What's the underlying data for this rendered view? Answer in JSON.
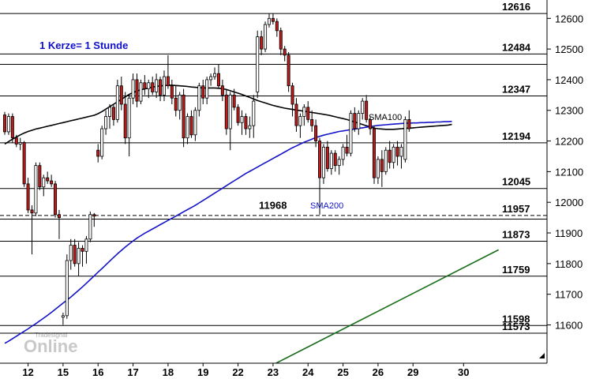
{
  "note": "1 Kerze= 1 Stunde",
  "watermark": {
    "brand": "Tradesignal",
    "text": "Online"
  },
  "chart_data": {
    "type": "candlestick",
    "ylim": [
      11475,
      12660
    ],
    "y_ticks": [
      11600,
      11700,
      11800,
      11900,
      12000,
      12100,
      12200,
      12300,
      12400,
      12500,
      12600
    ],
    "x_ticks": [
      {
        "label": "12",
        "slot": 6
      },
      {
        "label": "15",
        "slot": 15
      },
      {
        "label": "16",
        "slot": 24
      },
      {
        "label": "17",
        "slot": 33
      },
      {
        "label": "18",
        "slot": 42
      },
      {
        "label": "19",
        "slot": 51
      },
      {
        "label": "22",
        "slot": 60
      },
      {
        "label": "23",
        "slot": 69
      },
      {
        "label": "24",
        "slot": 78
      },
      {
        "label": "25",
        "slot": 87
      },
      {
        "label": "26",
        "slot": 96
      },
      {
        "label": "29",
        "slot": 105
      },
      {
        "label": "30",
        "slot": 118
      }
    ],
    "x_slots": 123,
    "levels": [
      {
        "value": 12616,
        "label": "12616",
        "style": "solid"
      },
      {
        "value": 12484,
        "label": "12484",
        "style": "solid"
      },
      {
        "value": 12347,
        "label": "12347",
        "style": "solid"
      },
      {
        "value": 12194,
        "label": "12194",
        "style": "solid"
      },
      {
        "value": 12045,
        "label": "12045",
        "style": "solid"
      },
      {
        "value": 11957,
        "label": "11957",
        "style": "dashed"
      },
      {
        "value": 11873,
        "label": "11873",
        "style": "solid"
      },
      {
        "value": 11759,
        "label": "11759",
        "style": "solid"
      },
      {
        "value": 11598,
        "label": "11598",
        "style": "solid"
      },
      {
        "value": 11573,
        "label": "11573",
        "style": "solid"
      }
    ],
    "extra_lines": [
      12450,
      11945
    ],
    "annotations": [
      {
        "text": "11968",
        "value": 11968
      }
    ],
    "trendline": {
      "color": "#1a6e1a",
      "points": [
        [
          69,
          11470
        ],
        [
          127,
          11845
        ]
      ]
    },
    "series": [
      {
        "name": "SMA100",
        "color": "#000000",
        "values": [
          12190,
          12198,
          12206,
          12213,
          12220,
          12226,
          12231,
          12235,
          12239,
          12242,
          12245,
          12248,
          12251,
          12254,
          12257,
          12260,
          12263,
          12266,
          12269,
          12272,
          12275,
          12278,
          12281,
          12284,
          12289,
          12296,
          12304,
          12312,
          12320,
          12328,
          12336,
          12344,
          12352,
          12358,
          12363,
          12367,
          12370,
          12373,
          12376,
          12378,
          12380,
          12381,
          12382,
          12382,
          12381,
          12380,
          12379,
          12378,
          12376,
          12375,
          12374,
          12373,
          12373,
          12373,
          12373,
          12372,
          12371,
          12368,
          12364,
          12360,
          12356,
          12352,
          12347,
          12342,
          12337,
          12332,
          12328,
          12324,
          12320,
          12316,
          12313,
          12310,
          12307,
          12305,
          12303,
          12301,
          12299,
          12297,
          12295,
          12293,
          12291,
          12289,
          12287,
          12285,
          12282,
          12279,
          12276,
          12273,
          12270,
          12266,
          12262,
          12258,
          12254,
          12250,
          12246,
          12242,
          12240,
          12239,
          12238,
          12238,
          12238,
          12239,
          12240,
          12241,
          12242,
          12243,
          12244,
          12245,
          12246,
          12247,
          12248,
          12249,
          12250,
          12251,
          12252,
          12254
        ],
        "label": "SMA100"
      },
      {
        "name": "SMA200",
        "color": "#1414c8",
        "values": [
          11540,
          11547,
          11555,
          11563,
          11571,
          11579,
          11587,
          11596,
          11604,
          11613,
          11622,
          11631,
          11641,
          11651,
          11661,
          11671,
          11681,
          11691,
          11702,
          11713,
          11724,
          11736,
          11748,
          11760,
          11772,
          11784,
          11796,
          11808,
          11820,
          11832,
          11843,
          11854,
          11864,
          11874,
          11883,
          11891,
          11899,
          11906,
          11913,
          11920,
          11927,
          11934,
          11941,
          11948,
          11955,
          11962,
          11969,
          11976,
          11983,
          11990,
          11998,
          12006,
          12014,
          12022,
          12030,
          12038,
          12046,
          12054,
          12062,
          12070,
          12078,
          12086,
          12094,
          12101,
          12108,
          12115,
          12122,
          12129,
          12136,
          12143,
          12150,
          12157,
          12164,
          12171,
          12178,
          12184,
          12190,
          12196,
          12201,
          12206,
          12211,
          12215,
          12219,
          12222,
          12225,
          12228,
          12231,
          12233,
          12235,
          12237,
          12239,
          12241,
          12243,
          12245,
          12247,
          12249,
          12251,
          12252,
          12253,
          12254,
          12255,
          12256,
          12257,
          12258,
          12258,
          12259,
          12259,
          12260,
          12260,
          12261,
          12261,
          12262,
          12262,
          12263,
          12263,
          12264
        ],
        "label": "SMA200"
      }
    ],
    "candles": [
      [
        12285,
        12295,
        12220,
        12230
      ],
      [
        12230,
        12290,
        12220,
        12280
      ],
      [
        12280,
        12290,
        12195,
        12210
      ],
      [
        12210,
        12220,
        12180,
        12190
      ],
      [
        12190,
        12210,
        12170,
        12195
      ],
      [
        12195,
        12200,
        12050,
        12060
      ],
      [
        12060,
        12080,
        11965,
        11975
      ],
      [
        11975,
        11990,
        11830,
        11965
      ],
      [
        11965,
        12130,
        11955,
        12120
      ],
      [
        12120,
        12130,
        12040,
        12050
      ],
      [
        12050,
        12090,
        12020,
        12080
      ],
      [
        12080,
        12100,
        12060,
        12070
      ],
      [
        12070,
        12090,
        12050,
        12060
      ],
      [
        12060,
        12070,
        11950,
        11960
      ],
      [
        11960,
        11975,
        11880,
        11950
      ],
      [
        11625,
        11640,
        11600,
        11630
      ],
      [
        11630,
        11830,
        11620,
        11810
      ],
      [
        11810,
        11880,
        11780,
        11860
      ],
      [
        11860,
        11880,
        11790,
        11800
      ],
      [
        11800,
        11870,
        11760,
        11850
      ],
      [
        11850,
        11860,
        11790,
        11840
      ],
      [
        11840,
        11890,
        11800,
        11880
      ],
      [
        11880,
        11970,
        11870,
        11960
      ],
      [
        11960,
        11965,
        11920,
        11955
      ],
      [
        12170,
        12190,
        12130,
        12150
      ],
      [
        12150,
        12250,
        12140,
        12240
      ],
      [
        12240,
        12300,
        12220,
        12280
      ],
      [
        12280,
        12320,
        12240,
        12310
      ],
      [
        12310,
        12320,
        12250,
        12270
      ],
      [
        12270,
        12400,
        12260,
        12380
      ],
      [
        12380,
        12410,
        12300,
        12320
      ],
      [
        12320,
        12360,
        12190,
        12210
      ],
      [
        12210,
        12350,
        12150,
        12340
      ],
      [
        12340,
        12420,
        12320,
        12400
      ],
      [
        12400,
        12420,
        12310,
        12330
      ],
      [
        12330,
        12400,
        12320,
        12390
      ],
      [
        12390,
        12415,
        12350,
        12370
      ],
      [
        12370,
        12400,
        12340,
        12390
      ],
      [
        12390,
        12410,
        12350,
        12360
      ],
      [
        12360,
        12420,
        12340,
        12400
      ],
      [
        12400,
        12410,
        12330,
        12350
      ],
      [
        12350,
        12430,
        12330,
        12410
      ],
      [
        12410,
        12480,
        12370,
        12380
      ],
      [
        12380,
        12400,
        12320,
        12340
      ],
      [
        12340,
        12380,
        12280,
        12300
      ],
      [
        12300,
        12360,
        12270,
        12350
      ],
      [
        12350,
        12370,
        12180,
        12210
      ],
      [
        12210,
        12290,
        12190,
        12280
      ],
      [
        12280,
        12300,
        12210,
        12220
      ],
      [
        12220,
        12310,
        12200,
        12300
      ],
      [
        12300,
        12390,
        12280,
        12380
      ],
      [
        12380,
        12400,
        12320,
        12340
      ],
      [
        12340,
        12410,
        12320,
        12400
      ],
      [
        12400,
        12420,
        12380,
        12410
      ],
      [
        12410,
        12440,
        12400,
        12420
      ],
      [
        12420,
        12450,
        12370,
        12380
      ],
      [
        12380,
        12400,
        12330,
        12350
      ],
      [
        12350,
        12370,
        12220,
        12240
      ],
      [
        12240,
        12360,
        12170,
        12350
      ],
      [
        12350,
        12370,
        12300,
        12310
      ],
      [
        12310,
        12320,
        12250,
        12260
      ],
      [
        12260,
        12300,
        12220,
        12280
      ],
      [
        12280,
        12290,
        12220,
        12240
      ],
      [
        12240,
        12280,
        12210,
        12250
      ],
      [
        12250,
        12350,
        12210,
        12330
      ],
      [
        12360,
        12560,
        12340,
        12540
      ],
      [
        12540,
        12560,
        12480,
        12500
      ],
      [
        12500,
        12590,
        12490,
        12580
      ],
      [
        12580,
        12615,
        12570,
        12600
      ],
      [
        12600,
        12615,
        12580,
        12590
      ],
      [
        12590,
        12600,
        12540,
        12560
      ],
      [
        12560,
        12570,
        12480,
        12500
      ],
      [
        12500,
        12510,
        12460,
        12480
      ],
      [
        12480,
        12490,
        12360,
        12380
      ],
      [
        12380,
        12390,
        12280,
        12320
      ],
      [
        12320,
        12340,
        12230,
        12250
      ],
      [
        12250,
        12290,
        12210,
        12280
      ],
      [
        12280,
        12320,
        12250,
        12310
      ],
      [
        12310,
        12330,
        12260,
        12270
      ],
      [
        12270,
        12300,
        12230,
        12250
      ],
      [
        12250,
        12270,
        12180,
        12200
      ],
      [
        12200,
        12210,
        11960,
        12080
      ],
      [
        12080,
        12190,
        12060,
        12180
      ],
      [
        12180,
        12200,
        12100,
        12110
      ],
      [
        12110,
        12170,
        12090,
        12160
      ],
      [
        12160,
        12170,
        12100,
        12120
      ],
      [
        12120,
        12150,
        12090,
        12140
      ],
      [
        12140,
        12190,
        12120,
        12180
      ],
      [
        12180,
        12220,
        12150,
        12160
      ],
      [
        12160,
        12300,
        12150,
        12290
      ],
      [
        12290,
        12310,
        12230,
        12240
      ],
      [
        12240,
        12300,
        12220,
        12290
      ],
      [
        12290,
        12340,
        12270,
        12330
      ],
      [
        12330,
        12350,
        12260,
        12270
      ],
      [
        12270,
        12280,
        12220,
        12240
      ],
      [
        12240,
        12250,
        12060,
        12080
      ],
      [
        12080,
        12150,
        12060,
        12140
      ],
      [
        12140,
        12170,
        12050,
        12100
      ],
      [
        12100,
        12180,
        12090,
        12170
      ],
      [
        12170,
        12200,
        12110,
        12130
      ],
      [
        12130,
        12190,
        12110,
        12180
      ],
      [
        12180,
        12200,
        12120,
        12150
      ],
      [
        12150,
        12190,
        12110,
        12180
      ],
      [
        12140,
        12280,
        12130,
        12270
      ],
      [
        12270,
        12300,
        12230,
        12240
      ]
    ]
  }
}
